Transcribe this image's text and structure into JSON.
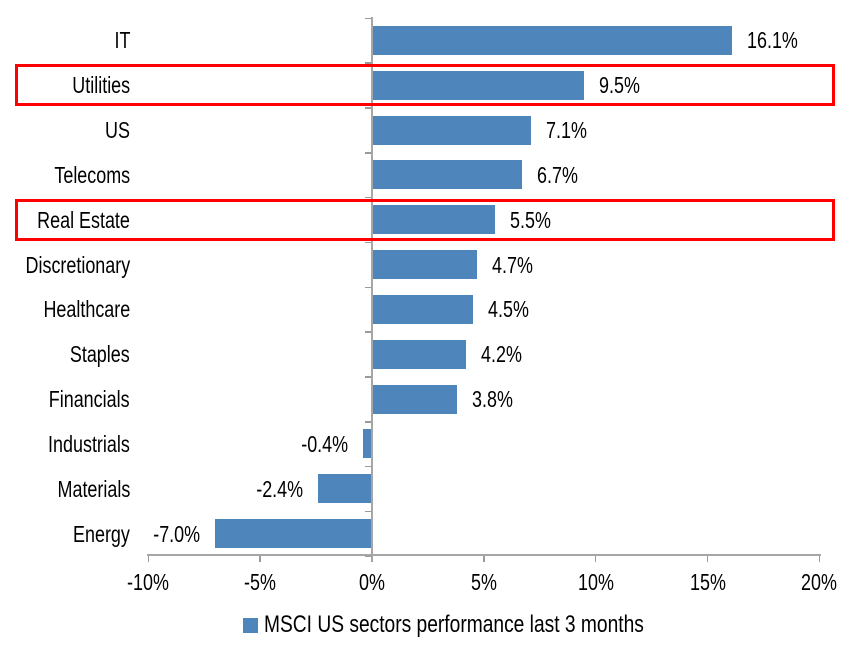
{
  "chart_data": {
    "type": "bar",
    "orientation": "horizontal",
    "title": "",
    "categories": [
      "IT",
      "Utilities",
      "US",
      "Telecoms",
      "Real Estate",
      "Discretionary",
      "Healthcare",
      "Staples",
      "Financials",
      "Industrials",
      "Materials",
      "Energy"
    ],
    "values": [
      16.1,
      9.5,
      7.1,
      6.7,
      5.5,
      4.7,
      4.5,
      4.2,
      3.8,
      -0.4,
      -2.4,
      -7.0
    ],
    "data_labels": [
      "16.1%",
      "9.5%",
      "7.1%",
      "6.7%",
      "5.5%",
      "4.7%",
      "4.5%",
      "4.2%",
      "3.8%",
      "-0.4%",
      "-2.4%",
      "-7.0%"
    ],
    "x_axis": {
      "tick_labels": [
        "-10%",
        "-5%",
        "0%",
        "5%",
        "10%",
        "15%",
        "20%"
      ],
      "tick_values": [
        -10,
        -5,
        0,
        5,
        10,
        15,
        20
      ],
      "min": -10,
      "max": 20,
      "grid": false
    },
    "legend": {
      "label": "MSCI US sectors performance last 3 months",
      "position": "bottom"
    },
    "highlighted_categories": [
      "Utilities",
      "Real Estate"
    ],
    "colors": {
      "bar": "#4e86bc",
      "highlight_box": "#ff0000",
      "axis": "#a6a6a6",
      "text": "#000000"
    }
  }
}
